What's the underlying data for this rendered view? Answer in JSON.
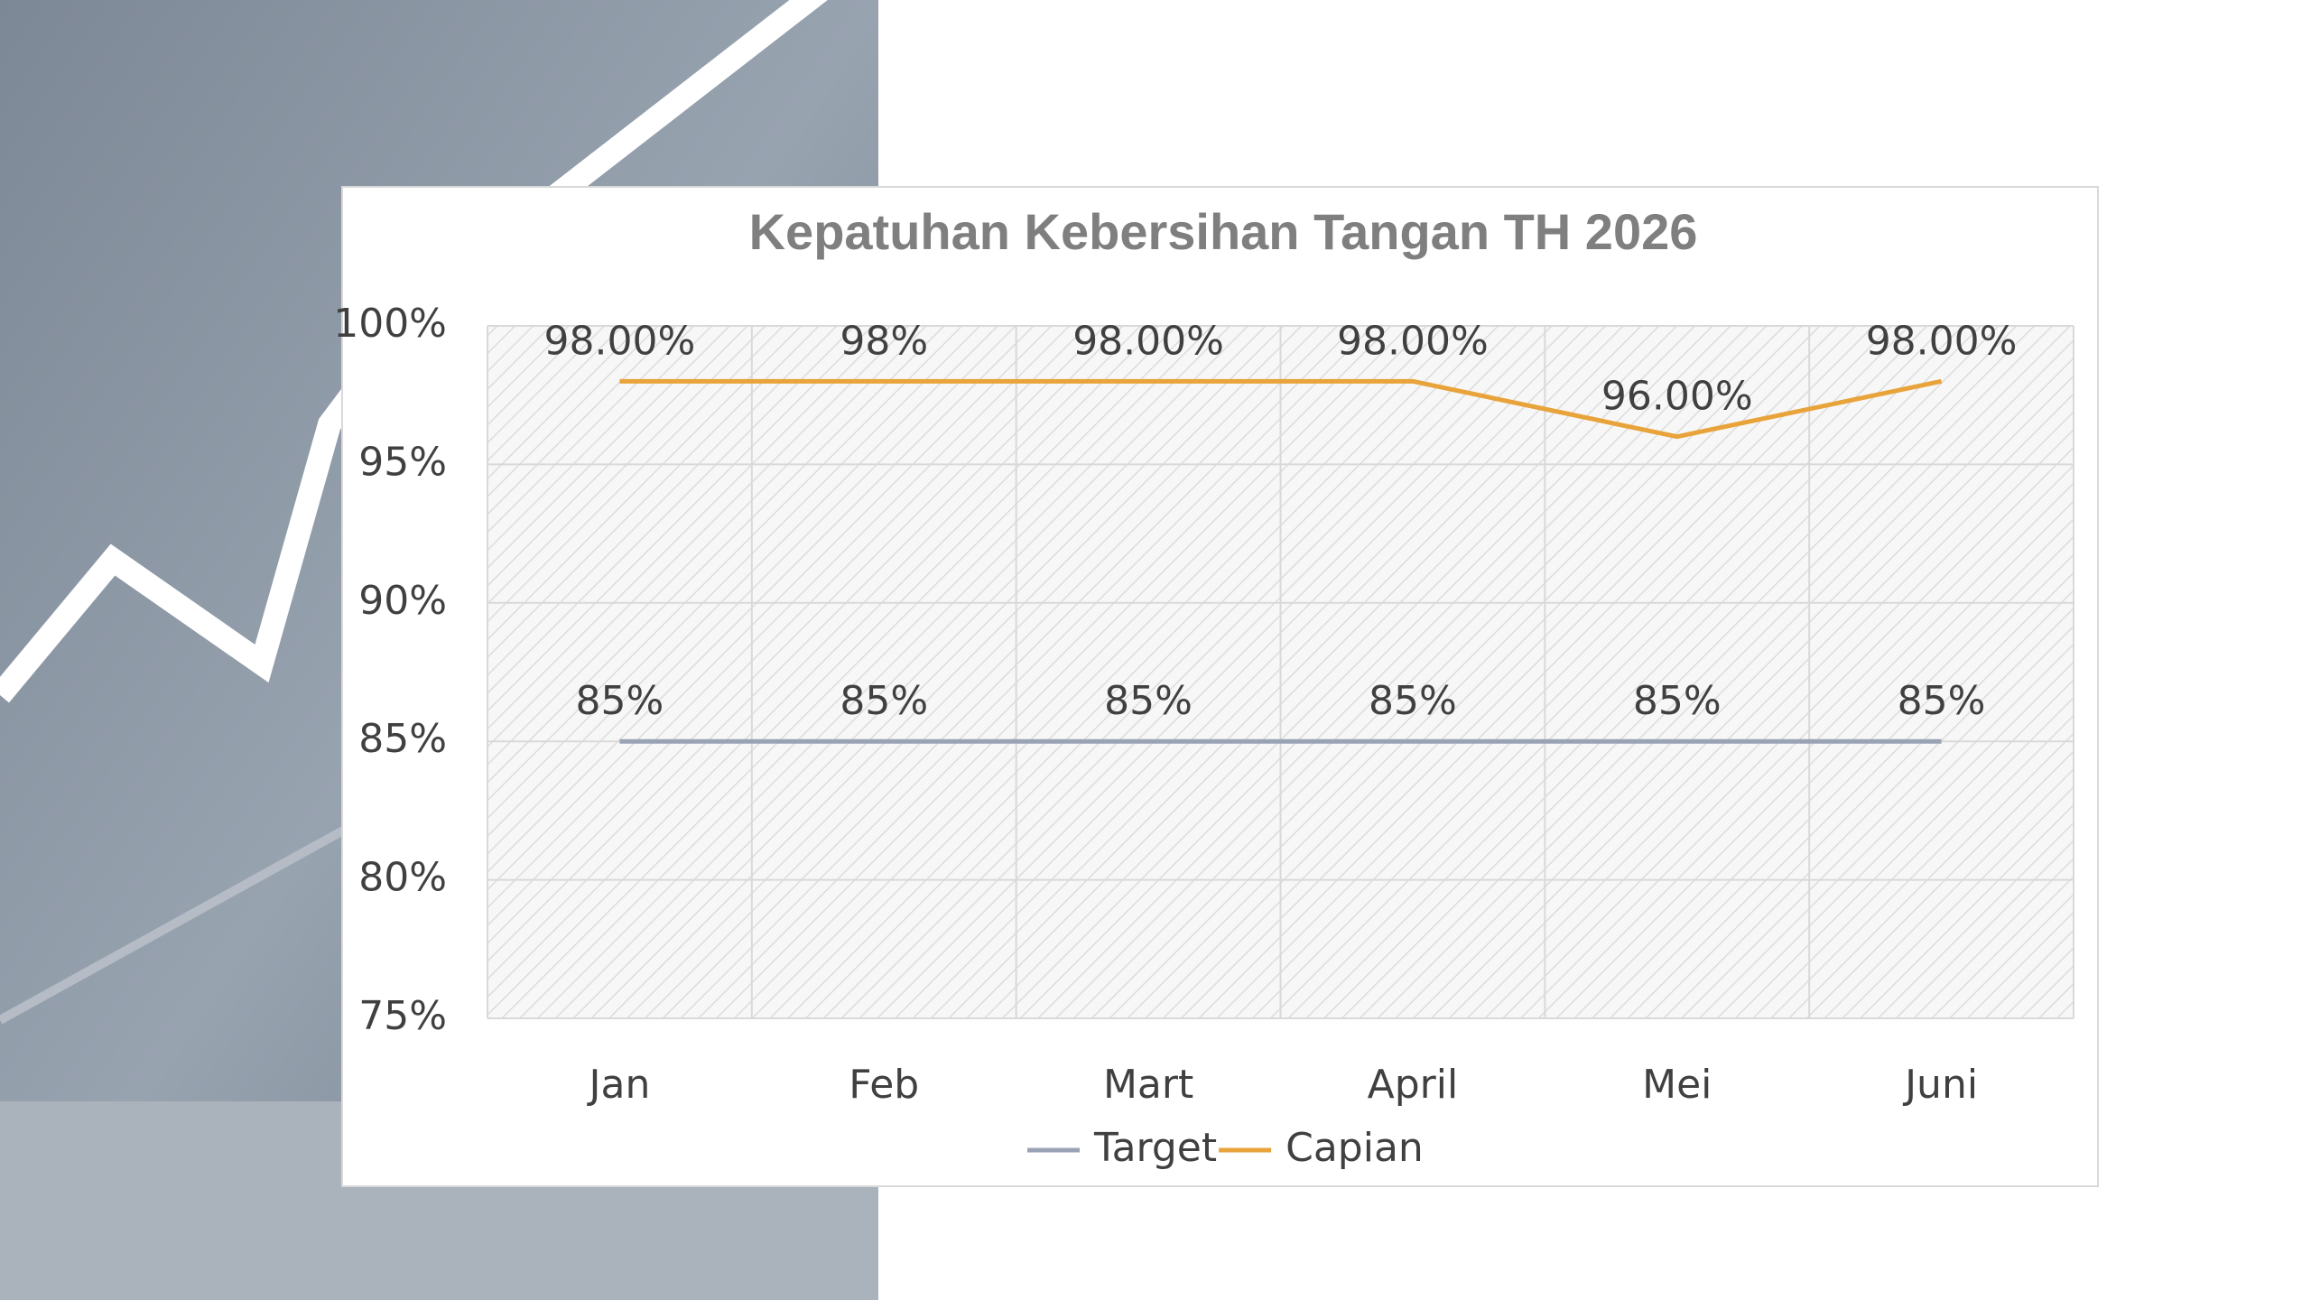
{
  "chart_data": {
    "type": "line",
    "title": "Kepatuhan Kebersihan Tangan TH 2026",
    "categories": [
      "Jan",
      "Feb",
      "Mart",
      "April",
      "Mei",
      "Juni"
    ],
    "series": [
      {
        "name": "Target",
        "color": "#9aa3b5",
        "values": [
          85,
          85,
          85,
          85,
          85,
          85
        ],
        "value_labels": [
          "85%",
          "85%",
          "85%",
          "85%",
          "85%",
          "85%"
        ]
      },
      {
        "name": "Capian",
        "color": "#e8a33a",
        "values": [
          98,
          98,
          98,
          98,
          96,
          98
        ],
        "value_labels": [
          "98.00%",
          "98%",
          "98.00%",
          "98.00%",
          "96.00%",
          "98.00%"
        ]
      }
    ],
    "ylim": [
      75,
      100
    ],
    "yticks": [
      {
        "value": 75,
        "label": "75%"
      },
      {
        "value": 80,
        "label": "80%"
      },
      {
        "value": 85,
        "label": "85%"
      },
      {
        "value": 90,
        "label": "90%"
      },
      {
        "value": 95,
        "label": "95%"
      },
      {
        "value": 100,
        "label": "100%"
      }
    ],
    "grid": true,
    "legend": "bottom"
  }
}
